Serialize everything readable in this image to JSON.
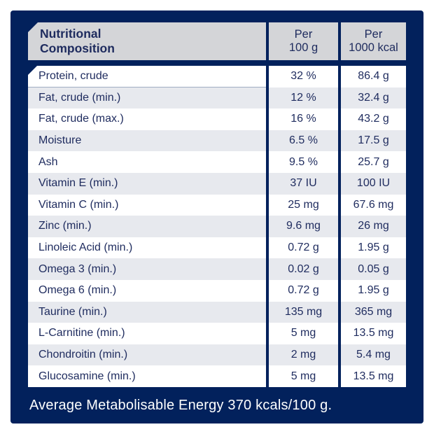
{
  "colors": {
    "panel_navy": "#02215c",
    "header_gray": "#d4d5d8",
    "row_alt_gray": "#e7e9ee",
    "row_white": "#ffffff",
    "text_navy": "#1e2b5e",
    "footer_text": "#ffffff"
  },
  "table": {
    "header": {
      "label": [
        "Nutritional",
        "Composition"
      ],
      "per_100g": [
        "Per",
        "100 g"
      ],
      "per_1000kcal": [
        "Per",
        "1000 kcal"
      ]
    },
    "rows": [
      {
        "label": "Protein, crude",
        "per_100g": "32 %",
        "per_1000kcal": "86.4 g"
      },
      {
        "label": "Fat, crude (min.)",
        "per_100g": "12 %",
        "per_1000kcal": "32.4 g"
      },
      {
        "label": "Fat, crude (max.)",
        "per_100g": "16 %",
        "per_1000kcal": "43.2 g"
      },
      {
        "label": "Moisture",
        "per_100g": "6.5 %",
        "per_1000kcal": "17.5 g"
      },
      {
        "label": "Ash",
        "per_100g": "9.5 %",
        "per_1000kcal": "25.7 g"
      },
      {
        "label": "Vitamin E (min.)",
        "per_100g": "37 IU",
        "per_1000kcal": "100 IU"
      },
      {
        "label": "Vitamin C (min.)",
        "per_100g": "25 mg",
        "per_1000kcal": "67.6 mg"
      },
      {
        "label": "Zinc (min.)",
        "per_100g": "9.6 mg",
        "per_1000kcal": "26 mg"
      },
      {
        "label": "Linoleic Acid (min.)",
        "per_100g": "0.72 g",
        "per_1000kcal": "1.95 g"
      },
      {
        "label": "Omega 3 (min.)",
        "per_100g": "0.02 g",
        "per_1000kcal": "0.05 g"
      },
      {
        "label": "Omega 6 (min.)",
        "per_100g": "0.72 g",
        "per_1000kcal": "1.95 g"
      },
      {
        "label": "Taurine (min.)",
        "per_100g": "135 mg",
        "per_1000kcal": "365 mg"
      },
      {
        "label": "L-Carnitine (min.)",
        "per_100g": "5 mg",
        "per_1000kcal": "13.5 mg"
      },
      {
        "label": "Chondroitin (min.)",
        "per_100g": "2 mg",
        "per_1000kcal": "5.4 mg"
      },
      {
        "label": "Glucosamine (min.)",
        "per_100g": "5 mg",
        "per_1000kcal": "13.5 mg"
      }
    ]
  },
  "footer": {
    "text": "Average Metabolisable Energy 370 kcals/100 g."
  },
  "chart_data": {
    "type": "table",
    "title": "Nutritional Composition",
    "columns": [
      "Nutritional Composition",
      "Per 100 g",
      "Per 1000 kcal"
    ],
    "rows": [
      [
        "Protein, crude",
        "32 %",
        "86.4 g"
      ],
      [
        "Fat, crude (min.)",
        "12 %",
        "32.4 g"
      ],
      [
        "Fat, crude (max.)",
        "16 %",
        "43.2 g"
      ],
      [
        "Moisture",
        "6.5 %",
        "17.5 g"
      ],
      [
        "Ash",
        "9.5 %",
        "25.7 g"
      ],
      [
        "Vitamin E (min.)",
        "37 IU",
        "100 IU"
      ],
      [
        "Vitamin C (min.)",
        "25 mg",
        "67.6 mg"
      ],
      [
        "Zinc (min.)",
        "9.6 mg",
        "26 mg"
      ],
      [
        "Linoleic Acid (min.)",
        "0.72 g",
        "1.95 g"
      ],
      [
        "Omega 3 (min.)",
        "0.02 g",
        "0.05 g"
      ],
      [
        "Omega 6 (min.)",
        "0.72 g",
        "1.95 g"
      ],
      [
        "Taurine (min.)",
        "135 mg",
        "365 mg"
      ],
      [
        "L-Carnitine (min.)",
        "5 mg",
        "13.5 mg"
      ],
      [
        "Chondroitin (min.)",
        "2 mg",
        "5.4 mg"
      ],
      [
        "Glucosamine (min.)",
        "5 mg",
        "13.5 mg"
      ]
    ],
    "footnote": "Average Metabolisable Energy 370 kcals/100 g."
  }
}
